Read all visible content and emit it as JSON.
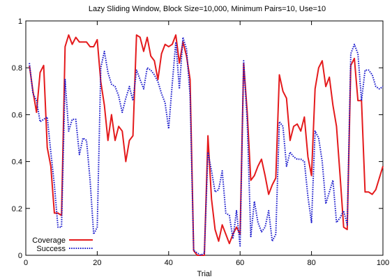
{
  "chart_data": {
    "type": "line",
    "title": "Lazy Sliding Window, Block Size=10,000, Minimum Pairs=10, Use=10",
    "xlabel": "Trial",
    "ylabel": "",
    "xlim": [
      0,
      100
    ],
    "ylim": [
      0,
      1
    ],
    "xticks": [
      0,
      20,
      40,
      60,
      80,
      100
    ],
    "yticks": [
      0,
      0.2,
      0.4,
      0.6,
      0.8,
      1
    ],
    "grid": false,
    "legend_position": "bottom-left",
    "x": [
      1,
      2,
      3,
      4,
      5,
      6,
      7,
      8,
      9,
      10,
      11,
      12,
      13,
      14,
      15,
      16,
      17,
      18,
      19,
      20,
      21,
      22,
      23,
      24,
      25,
      26,
      27,
      28,
      29,
      30,
      31,
      32,
      33,
      34,
      35,
      36,
      37,
      38,
      39,
      40,
      41,
      42,
      43,
      44,
      45,
      46,
      47,
      48,
      49,
      50,
      51,
      52,
      53,
      54,
      55,
      56,
      57,
      58,
      59,
      60,
      61,
      62,
      63,
      64,
      65,
      66,
      67,
      68,
      69,
      70,
      71,
      72,
      73,
      74,
      75,
      76,
      77,
      78,
      79,
      80,
      81,
      82,
      83,
      84,
      85,
      86,
      87,
      88,
      89,
      90,
      91,
      92,
      93,
      94,
      95,
      96,
      97,
      98,
      99,
      100
    ],
    "series": [
      {
        "name": "Coverage",
        "color": "#e41a1c",
        "style": "solid",
        "values": [
          0.81,
          0.7,
          0.61,
          0.78,
          0.81,
          0.46,
          0.38,
          0.18,
          0.18,
          0.17,
          0.89,
          0.94,
          0.9,
          0.93,
          0.91,
          0.91,
          0.91,
          0.89,
          0.89,
          0.92,
          0.74,
          0.64,
          0.49,
          0.6,
          0.49,
          0.55,
          0.53,
          0.4,
          0.49,
          0.51,
          0.94,
          0.93,
          0.87,
          0.93,
          0.85,
          0.83,
          0.75,
          0.86,
          0.9,
          0.89,
          0.9,
          0.94,
          0.82,
          0.91,
          0.85,
          0.75,
          0.02,
          0.0,
          0.0,
          0.0,
          0.51,
          0.24,
          0.11,
          0.06,
          0.13,
          0.09,
          0.05,
          0.09,
          0.12,
          0.09,
          0.82,
          0.61,
          0.32,
          0.34,
          0.38,
          0.41,
          0.34,
          0.26,
          0.3,
          0.33,
          0.77,
          0.7,
          0.67,
          0.49,
          0.55,
          0.56,
          0.53,
          0.59,
          0.42,
          0.34,
          0.71,
          0.8,
          0.83,
          0.72,
          0.76,
          0.64,
          0.55,
          0.34,
          0.12,
          0.11,
          0.81,
          0.84,
          0.66,
          0.66,
          0.27,
          0.27,
          0.26,
          0.28,
          0.33,
          0.38
        ]
      },
      {
        "name": "Success",
        "color": "#1a1acc",
        "style": "dotted",
        "values": [
          0.82,
          0.69,
          0.66,
          0.57,
          0.58,
          0.59,
          0.44,
          0.3,
          0.12,
          0.12,
          0.75,
          0.53,
          0.58,
          0.58,
          0.43,
          0.5,
          0.49,
          0.32,
          0.09,
          0.12,
          0.8,
          0.87,
          0.78,
          0.73,
          0.72,
          0.68,
          0.61,
          0.67,
          0.72,
          0.66,
          0.79,
          0.75,
          0.71,
          0.8,
          0.79,
          0.77,
          0.74,
          0.69,
          0.65,
          0.54,
          0.73,
          0.91,
          0.71,
          0.93,
          0.88,
          0.68,
          0.02,
          0.01,
          0.0,
          0.01,
          0.44,
          0.36,
          0.27,
          0.28,
          0.36,
          0.18,
          0.17,
          0.07,
          0.19,
          0.04,
          0.83,
          0.57,
          0.08,
          0.23,
          0.14,
          0.1,
          0.12,
          0.19,
          0.06,
          0.09,
          0.57,
          0.55,
          0.38,
          0.44,
          0.42,
          0.41,
          0.41,
          0.4,
          0.25,
          0.14,
          0.53,
          0.5,
          0.4,
          0.22,
          0.27,
          0.32,
          0.14,
          0.16,
          0.19,
          0.13,
          0.86,
          0.9,
          0.86,
          0.66,
          0.79,
          0.79,
          0.77,
          0.72,
          0.71,
          0.72
        ]
      }
    ]
  }
}
